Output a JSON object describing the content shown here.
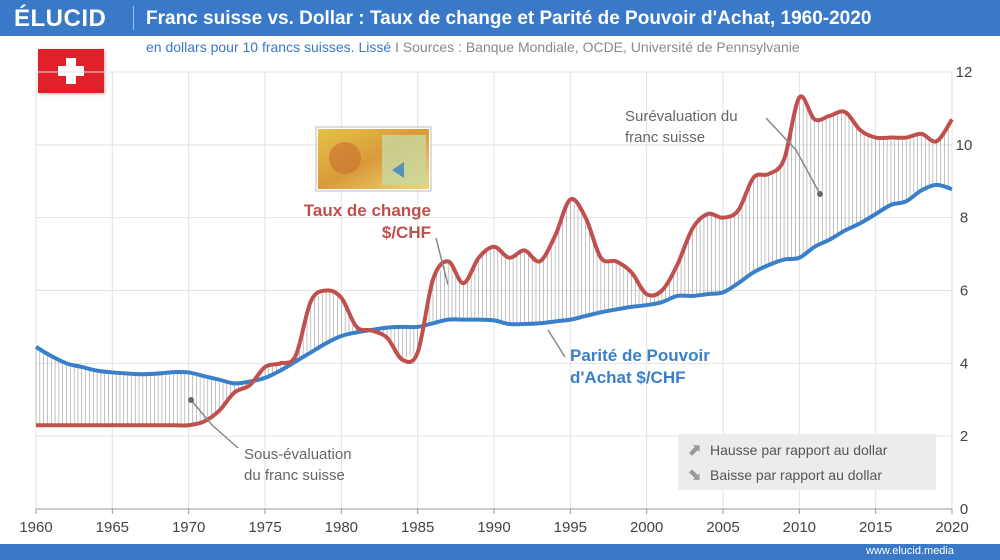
{
  "header": {
    "logo": "ÉLUCID",
    "title": "Franc suisse vs. Dollar : Taux de change et Parité de Pouvoir d'Achat, 1960-2020",
    "subtitle_main": "en dollars pour 10 francs suisses. Lissé",
    "subtitle_sep": "I",
    "subtitle_sources": "Sources : Banque Mondiale, OCDE, Université de Pennsylvanie"
  },
  "footer": {
    "url": "www.elucid.media"
  },
  "legend": {
    "up": "Hausse par rapport au dollar",
    "down": "Baisse par rapport au dollar"
  },
  "annotations": {
    "exchange_label_1": "Taux de change",
    "exchange_label_2": "$/CHF",
    "ppp_label_1": "Parité de Pouvoir",
    "ppp_label_2": "d'Achat $/CHF",
    "over_1": "Surévaluation du",
    "over_2": "franc suisse",
    "under_1": "Sous-évaluation",
    "under_2": "du franc suisse"
  },
  "colors": {
    "exchange": "#c0504d",
    "ppp": "#3a80c8",
    "brand": "#3a78c8",
    "swiss_red": "#e0212a"
  },
  "icons": [
    "swiss-flag-icon",
    "banknote-image",
    "arrow-up-icon",
    "arrow-down-icon"
  ],
  "chart_data": {
    "type": "line",
    "x": [
      1960,
      1961,
      1962,
      1963,
      1964,
      1965,
      1966,
      1967,
      1968,
      1969,
      1970,
      1971,
      1972,
      1973,
      1974,
      1975,
      1976,
      1977,
      1978,
      1979,
      1980,
      1981,
      1982,
      1983,
      1984,
      1985,
      1986,
      1987,
      1988,
      1989,
      1990,
      1991,
      1992,
      1993,
      1994,
      1995,
      1996,
      1997,
      1998,
      1999,
      2000,
      2001,
      2002,
      2003,
      2004,
      2005,
      2006,
      2007,
      2008,
      2009,
      2010,
      2011,
      2012,
      2013,
      2014,
      2015,
      2016,
      2017,
      2018,
      2019,
      2020
    ],
    "series": [
      {
        "name": "Taux de change $/CHF",
        "values": [
          2.3,
          2.3,
          2.3,
          2.3,
          2.3,
          2.3,
          2.3,
          2.3,
          2.3,
          2.3,
          2.3,
          2.4,
          2.7,
          3.2,
          3.4,
          3.9,
          4.0,
          4.2,
          5.7,
          6.0,
          5.8,
          5.0,
          4.9,
          4.7,
          4.1,
          4.3,
          6.3,
          6.8,
          6.2,
          6.9,
          7.2,
          6.9,
          7.1,
          6.8,
          7.5,
          8.5,
          8.0,
          6.9,
          6.8,
          6.5,
          5.9,
          6.0,
          6.7,
          7.7,
          8.1,
          8.0,
          8.2,
          9.1,
          9.2,
          9.6,
          11.3,
          10.7,
          10.8,
          10.9,
          10.4,
          10.2,
          10.2,
          10.2,
          10.3,
          10.1,
          10.7
        ]
      },
      {
        "name": "Parité de Pouvoir d'Achat $/CHF",
        "values": [
          4.45,
          4.2,
          4.0,
          3.9,
          3.8,
          3.75,
          3.72,
          3.7,
          3.72,
          3.76,
          3.75,
          3.65,
          3.55,
          3.45,
          3.5,
          3.6,
          3.8,
          4.05,
          4.3,
          4.55,
          4.75,
          4.85,
          4.92,
          4.98,
          5.0,
          5.0,
          5.1,
          5.2,
          5.2,
          5.2,
          5.18,
          5.08,
          5.08,
          5.1,
          5.15,
          5.2,
          5.3,
          5.4,
          5.48,
          5.55,
          5.6,
          5.68,
          5.85,
          5.85,
          5.9,
          5.95,
          6.2,
          6.5,
          6.7,
          6.85,
          6.9,
          7.2,
          7.4,
          7.65,
          7.85,
          8.1,
          8.35,
          8.45,
          8.75,
          8.9,
          8.78
        ]
      }
    ],
    "xticks": [
      1960,
      1965,
      1970,
      1975,
      1980,
      1985,
      1990,
      1995,
      2000,
      2005,
      2010,
      2015,
      2020
    ],
    "yticks": [
      0,
      2,
      4,
      6,
      8,
      10,
      12
    ],
    "xlim": [
      1960,
      2020
    ],
    "ylim": [
      0,
      12
    ],
    "grid": true
  }
}
